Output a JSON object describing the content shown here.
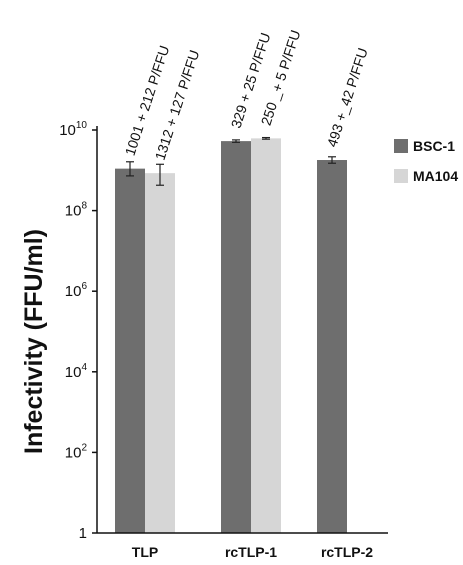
{
  "chart_data": {
    "type": "bar",
    "title": "",
    "xlabel": "",
    "ylabel": "Infectivity (FFU/ml)",
    "yscale": "log",
    "ylim": [
      1,
      10000000000
    ],
    "yticks": [
      {
        "value": 1,
        "base": "1",
        "exp": ""
      },
      {
        "value": 100,
        "base": "10",
        "exp": "2"
      },
      {
        "value": 10000,
        "base": "10",
        "exp": "4"
      },
      {
        "value": 1000000,
        "base": "10",
        "exp": "6"
      },
      {
        "value": 100000000,
        "base": "10",
        "exp": "8"
      },
      {
        "value": 10000000000,
        "base": "10",
        "exp": "10"
      }
    ],
    "categories": [
      "TLP",
      "rcTLP-1",
      "rcTLP-2"
    ],
    "legend_position": "top-right",
    "series": [
      {
        "name": "BSC-1",
        "color": "#6e6e6e",
        "values": [
          1100000000,
          5300000000,
          1800000000
        ],
        "error": [
          [
            0.18,
            0.17
          ],
          [
            0.03,
            0.03
          ],
          [
            0.08,
            0.08
          ]
        ],
        "labels": [
          "1001 + 212 P/FFU",
          "329 + 25 P/FFU",
          "493 +_42 P/FFU"
        ]
      },
      {
        "name": "MA104",
        "color": "#d6d6d6",
        "values": [
          850000000,
          6200000000,
          null
        ],
        "error": [
          [
            0.3,
            0.22
          ],
          [
            0.02,
            0.02
          ],
          null
        ],
        "labels": [
          "1312 + 127 P/FFU",
          "250 _+ 5 P/FFU",
          ""
        ]
      }
    ]
  }
}
